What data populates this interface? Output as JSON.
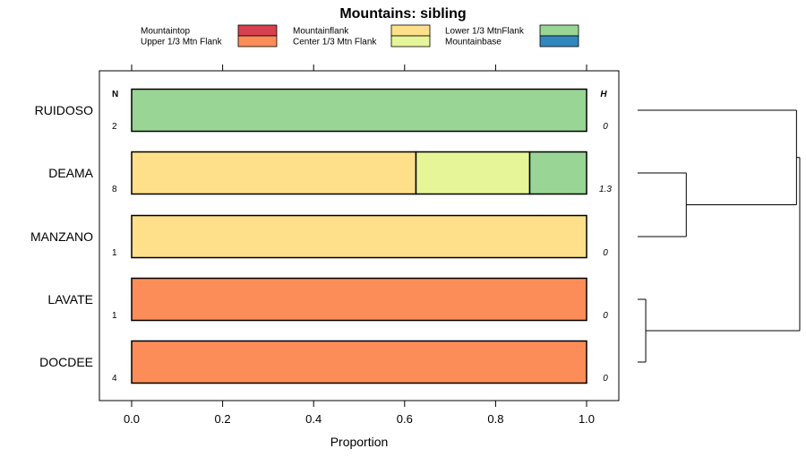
{
  "chart_data": {
    "type": "bar",
    "orientation": "horizontal",
    "stacked": true,
    "title": "Mountains: sibling",
    "xlabel": "Proportion",
    "xlim": [
      0,
      1
    ],
    "xticks": [
      "0.0",
      "0.2",
      "0.4",
      "0.6",
      "0.8",
      "1.0"
    ],
    "xtick_values": [
      0,
      0.2,
      0.4,
      0.6,
      0.8,
      1.0
    ],
    "n_header": "N",
    "h_header": "H",
    "categories": [
      "RUIDOSO",
      "DEAMA",
      "MANZANO",
      "LAVATE",
      "DOCDEE"
    ],
    "n_values": [
      "2",
      "8",
      "1",
      "1",
      "4"
    ],
    "h_values": [
      "0",
      "1.3",
      "0",
      "0",
      "0"
    ],
    "series": [
      {
        "name": "Mountaintop",
        "color": "#d7404f",
        "values": [
          0,
          0,
          0,
          0,
          0
        ]
      },
      {
        "name": "Upper 1/3 Mtn Flank",
        "color": "#fc8d59",
        "values": [
          0,
          0,
          0,
          1,
          1
        ]
      },
      {
        "name": "Mountainflank",
        "color": "#fee08b",
        "values": [
          0,
          0.625,
          1,
          0,
          0
        ]
      },
      {
        "name": "Center 1/3 Mtn Flank",
        "color": "#e6f598",
        "values": [
          0,
          0.25,
          0,
          0,
          0
        ]
      },
      {
        "name": "Lower 1/3 MtnFlank",
        "color": "#99d594",
        "values": [
          1,
          0.125,
          0,
          0,
          0
        ]
      },
      {
        "name": "Mountainbase",
        "color": "#3288bd",
        "values": [
          0,
          0,
          0,
          0,
          0
        ]
      }
    ],
    "legend_position": "top",
    "dendrogram": {
      "merges": [
        {
          "a": "LAVATE",
          "b": "DOCDEE",
          "height": 0.05
        },
        {
          "a": "DEAMA",
          "b": "MANZANO",
          "height": 0.3
        },
        {
          "a": "cluster:DEAMA+MANZANO",
          "b": "RUIDOSO",
          "height": 0.98
        },
        {
          "a": "cluster:LAVATE+DOCDEE",
          "b": "cluster:DEAMA+MANZANO+RUIDOSO",
          "height": 1.0
        }
      ]
    }
  }
}
